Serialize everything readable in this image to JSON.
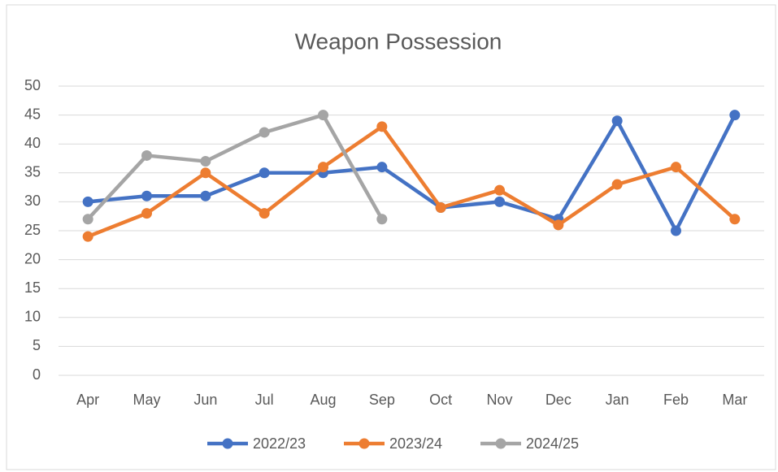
{
  "chart_data": {
    "type": "line",
    "title": "Weapon Possession",
    "categories": [
      "Apr",
      "May",
      "Jun",
      "Jul",
      "Aug",
      "Sep",
      "Oct",
      "Nov",
      "Dec",
      "Jan",
      "Feb",
      "Mar"
    ],
    "series": [
      {
        "name": "2022/23",
        "color": "#4472c4",
        "values": [
          30,
          31,
          31,
          35,
          35,
          36,
          29,
          30,
          27,
          44,
          25,
          45
        ]
      },
      {
        "name": "2023/24",
        "color": "#ed7d31",
        "values": [
          24,
          28,
          35,
          28,
          36,
          43,
          29,
          32,
          26,
          33,
          36,
          27
        ]
      },
      {
        "name": "2024/25",
        "color": "#a5a5a5",
        "values": [
          27,
          38,
          37,
          42,
          45,
          27,
          null,
          null,
          null,
          null,
          null,
          null
        ]
      }
    ],
    "ylim": [
      0,
      50
    ],
    "yticks": [
      0,
      5,
      10,
      15,
      20,
      25,
      30,
      35,
      40,
      45,
      50
    ],
    "grid": true,
    "legend": "bottom"
  }
}
